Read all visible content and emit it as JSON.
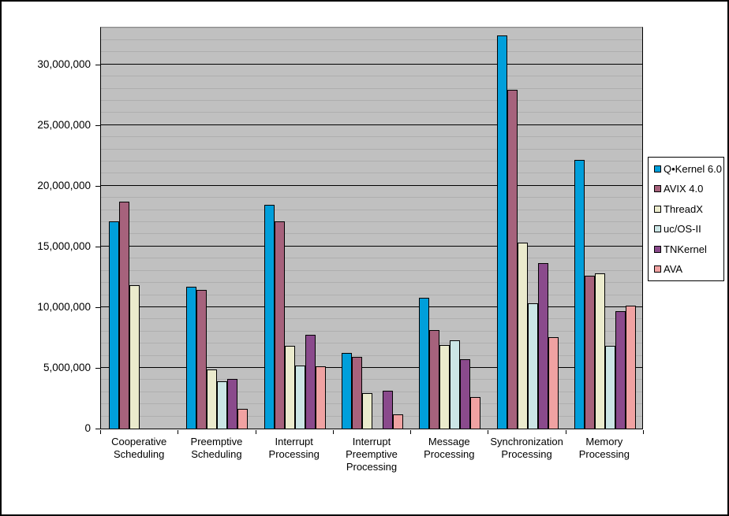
{
  "chart_data": {
    "type": "bar",
    "title": "",
    "xlabel": "",
    "ylabel": "",
    "categories": [
      "Cooperative\nScheduling",
      "Preemptive\nScheduling",
      "Interrupt\nProcessing",
      "Interrupt\nPreemptive\nProcessing",
      "Message\nProcessing",
      "Synchronization\nProcessing",
      "Memory\nProcessing"
    ],
    "series": [
      {
        "name": "Q•Kernel 6.0",
        "color": "#009FDB",
        "values": [
          17100000,
          11700000,
          18400000,
          6200000,
          10800000,
          32400000,
          22100000
        ]
      },
      {
        "name": "AVIX 4.0",
        "color": "#A6627C",
        "values": [
          18700000,
          11400000,
          17100000,
          5900000,
          8100000,
          27900000,
          12600000
        ]
      },
      {
        "name": "ThreadX",
        "color": "#EBEBCD",
        "values": [
          11800000,
          4900000,
          6800000,
          2900000,
          6900000,
          15300000,
          12800000
        ]
      },
      {
        "name": "uc/OS-II",
        "color": "#CBE5E5",
        "values": [
          0,
          3900000,
          5200000,
          0,
          7300000,
          10300000,
          6800000
        ]
      },
      {
        "name": "TNKernel",
        "color": "#8A4A8C",
        "values": [
          0,
          4100000,
          7700000,
          3100000,
          5700000,
          13600000,
          9700000
        ]
      },
      {
        "name": "AVA",
        "color": "#F0A2A2",
        "values": [
          0,
          1600000,
          5100000,
          1200000,
          2600000,
          7500000,
          10100000
        ]
      }
    ],
    "ylim": [
      0,
      33100000
    ],
    "yticks": {
      "values": [
        0,
        5000000,
        10000000,
        15000000,
        20000000,
        25000000,
        30000000
      ],
      "labels": [
        "0",
        "5,000,000",
        "10,000,000",
        "15,000,000",
        "20,000,000",
        "25,000,000",
        "30,000,000"
      ]
    },
    "major_unit": 5000000,
    "minor_unit": 1000000,
    "grid": {
      "major": true,
      "minor": true
    },
    "legend_position": "right",
    "plot_bg": "#C0C0C0"
  }
}
